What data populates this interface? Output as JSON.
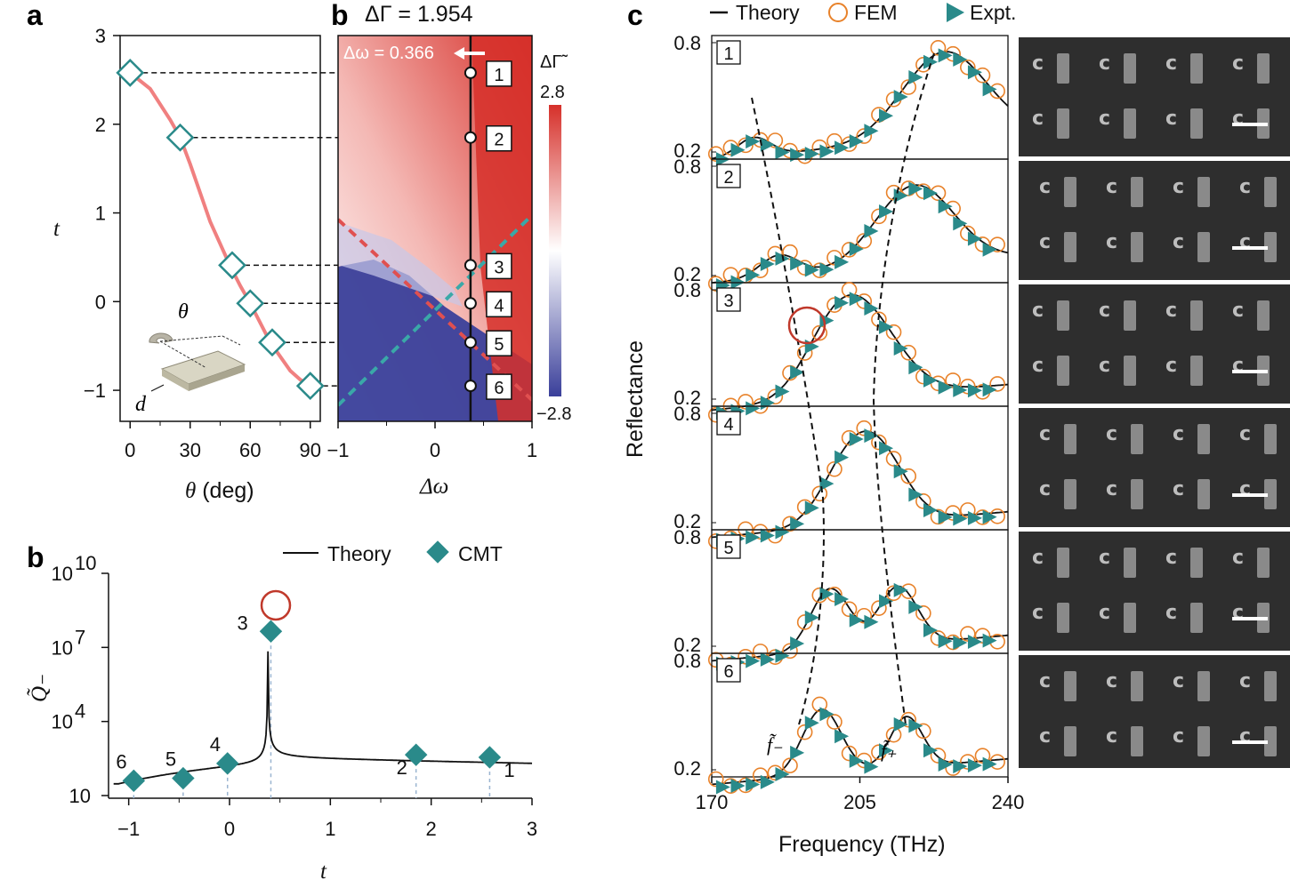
{
  "panel_labels": {
    "a": "a",
    "b_top": "b",
    "b_bottom": "b",
    "c": "c"
  },
  "colors": {
    "teal": "#2a8a8a",
    "pink": "#f08080",
    "orange": "#e8822a",
    "red_dash": "#e05050",
    "teal_dash": "#3aa8a8",
    "map_red": "#d6302a",
    "map_blue": "#3a3f9a",
    "circle_red": "#c0392b"
  },
  "chart_data": [
    {
      "id": "panel-a",
      "type": "line",
      "xlabel_sym": "θ",
      "xlabel_unit": " (deg)",
      "ylabel": "t",
      "xlim": [
        -5,
        95
      ],
      "ylim": [
        -1.35,
        3
      ],
      "xticks": [
        0,
        30,
        60,
        90
      ],
      "yticks": [
        3,
        2,
        1,
        0,
        -1
      ],
      "xtick_labels": [
        "0",
        "30",
        "60",
        "90"
      ],
      "ytick_labels": [
        "3",
        "2",
        "1",
        "0",
        "−1"
      ],
      "curve": {
        "x": [
          0,
          10,
          20,
          25,
          30,
          40,
          50,
          55,
          60,
          70,
          80,
          85,
          90
        ],
        "y": [
          2.58,
          2.4,
          2.05,
          1.85,
          1.55,
          0.9,
          0.4,
          0.18,
          -0.02,
          -0.46,
          -0.78,
          -0.88,
          -0.95
        ]
      },
      "markers": {
        "x": [
          0,
          25,
          51,
          60,
          71,
          90
        ],
        "y": [
          2.58,
          1.85,
          0.41,
          -0.02,
          -0.46,
          -0.95
        ]
      },
      "inset": {
        "theta_label": "θ",
        "d_label": "d"
      }
    },
    {
      "id": "panel-b-map",
      "type": "heatmap",
      "title": "ΔΓ = 1.954",
      "annotation": "Δω = 0.366",
      "xlabel": "Δω",
      "xlim": [
        -1,
        1
      ],
      "ylim": [
        -1.35,
        3
      ],
      "xticks": [
        -1,
        0,
        1
      ],
      "xtick_labels": [
        "−1",
        "0",
        "1"
      ],
      "vline_x": 0.366,
      "points": {
        "t": [
          2.58,
          1.85,
          0.41,
          -0.02,
          -0.46,
          -0.95
        ],
        "labels": [
          "1",
          "2",
          "3",
          "4",
          "5",
          "6"
        ]
      },
      "colorbar": {
        "label": "ΔΓ̃",
        "max_label": "2.8",
        "min_label": "−2.8",
        "range": [
          -2.8,
          2.8
        ]
      }
    },
    {
      "id": "panel-b-bottom",
      "type": "line",
      "xlabel": "t",
      "ylabel": "Q̃₋",
      "xlim": [
        -1.2,
        3
      ],
      "ylog_lim": [
        1,
        10
      ],
      "xticks": [
        -1,
        0,
        1,
        2,
        3
      ],
      "xtick_labels": [
        "−1",
        "0",
        "1",
        "2",
        "3"
      ],
      "yticks_log": [
        1,
        4,
        7,
        10
      ],
      "ytick_base": [
        "10",
        "10",
        "10",
        "10"
      ],
      "ytick_exp": [
        "",
        "4",
        "7",
        "10"
      ],
      "legend": [
        "Theory",
        "CMT"
      ],
      "cmt": {
        "t": [
          -0.95,
          -0.46,
          -0.02,
          0.41,
          1.85,
          2.58
        ],
        "log_q": [
          1.6,
          1.7,
          2.3,
          7.65,
          2.65,
          2.55
        ],
        "labels": [
          "6",
          "5",
          "4",
          "3",
          "2",
          "1"
        ]
      }
    },
    {
      "id": "panel-c",
      "type": "line",
      "xlabel": "Frequency (THz)",
      "ylabel": "Reflectance",
      "xlim": [
        170,
        240
      ],
      "ylim": [
        0.2,
        0.8
      ],
      "xticks": [
        170,
        205,
        240
      ],
      "xtick_labels": [
        "170",
        "205",
        "240"
      ],
      "ytick_labels": [
        "0.8",
        "0.2"
      ],
      "legend": [
        "Theory",
        "FEM",
        "Expt."
      ],
      "curve_labels": [
        "f̃₋",
        "f̃₊"
      ],
      "rows": [
        {
          "label": "1",
          "fm": 180,
          "fp": 225,
          "am": 0.1,
          "ap": 0.48,
          "wm": 5.5,
          "wp": 14,
          "bg": 0.16
        },
        {
          "label": "2",
          "fm": 186,
          "fp": 218,
          "am": 0.12,
          "ap": 0.44,
          "wm": 6.5,
          "wp": 13,
          "bg": 0.16
        },
        {
          "label": "3",
          "fm": 198,
          "fp": 206,
          "am": 0.22,
          "ap": 0.42,
          "wm": 10,
          "wp": 12,
          "bg": 0.14
        },
        {
          "label": "4",
          "fm": 202,
          "fp": 210,
          "am": 0.3,
          "ap": 0.32,
          "wm": 9,
          "wp": 9,
          "bg": 0.12
        },
        {
          "label": "5",
          "fm": 198,
          "fp": 214,
          "am": 0.34,
          "ap": 0.32,
          "wm": 6.5,
          "wp": 6.5,
          "bg": 0.12
        },
        {
          "label": "6",
          "fm": 196,
          "fp": 216,
          "am": 0.36,
          "ap": 0.28,
          "wm": 6.5,
          "wp": 5.5,
          "bg": 0.12
        }
      ]
    }
  ]
}
